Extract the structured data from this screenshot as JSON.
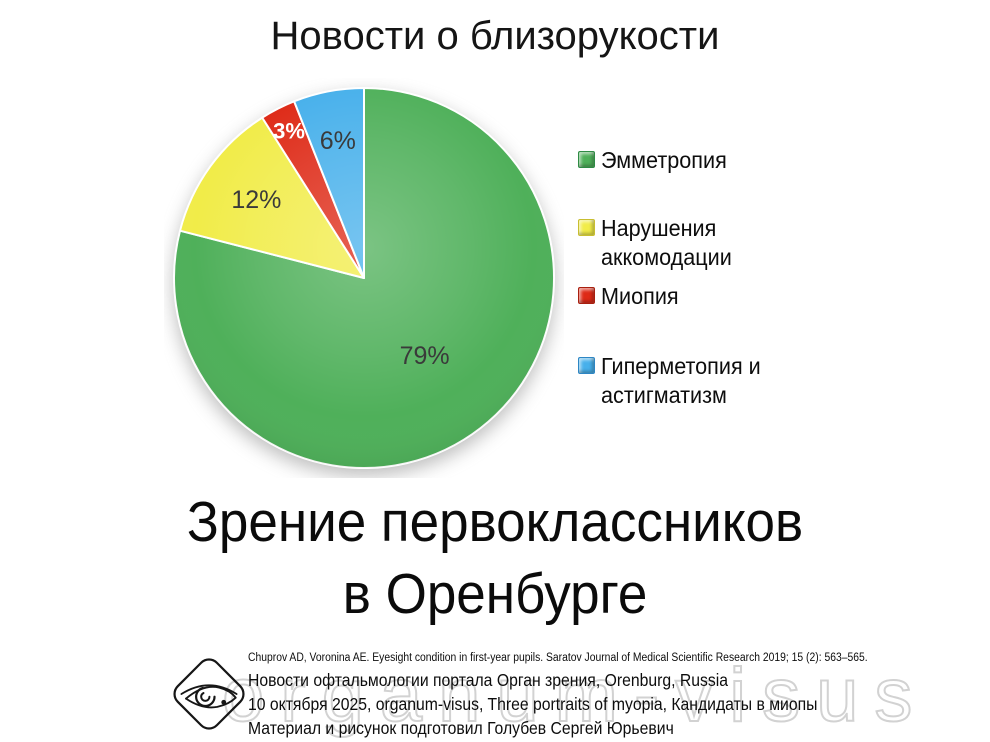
{
  "title": "Новости о близорукости",
  "chart_data": {
    "type": "pie",
    "title": "Новости о близорукости",
    "labels": [
      "Эмметропия",
      "Нарушения аккомодации",
      "Миопия",
      "Гиперметопия и астигматизм"
    ],
    "values": [
      79,
      12,
      3,
      6
    ],
    "unit": "%",
    "data_labels": [
      "79%",
      "12%",
      "3%",
      "6%"
    ],
    "colors": [
      "#4FB05A",
      "#F1EC49",
      "#DE2A17",
      "#47B0EB"
    ],
    "start_angle_deg": 0,
    "direction": "clockwise",
    "legend_position": "right",
    "data_label_color_default": "#3a3a3a",
    "data_label_color_myopia": "#ffffff"
  },
  "legend": {
    "items": [
      {
        "label": "Эмметропия",
        "color": "#4FB05A"
      },
      {
        "label": "Нарушения аккомодации",
        "color": "#F1EC49"
      },
      {
        "label": "Миопия",
        "color": "#DE2A17"
      },
      {
        "label": "Гиперметопия и астигматизм",
        "color": "#47B0EB"
      }
    ]
  },
  "headline": {
    "line1": "Зрение первоклассников",
    "line2": "в Оренбурге"
  },
  "footer": {
    "citation": "Chuprov AD, Voronina AE. Eyesight condition in first-year pupils. Saratov Journal of Medical Scientific Research 2019; 15 (2): 563–565.",
    "line1": "Новости офтальмологии портала Орган зрения, Orenburg, Russia",
    "line2": "10 октября 2025, organum-visus, Three portraits of myopia, Кандидаты в миопы",
    "line3": "Материал и рисунок подготовил Голубев Сергей Юрьевич",
    "watermark": "organum-visus",
    "logo_name": "organum-visus-eye-logo"
  }
}
